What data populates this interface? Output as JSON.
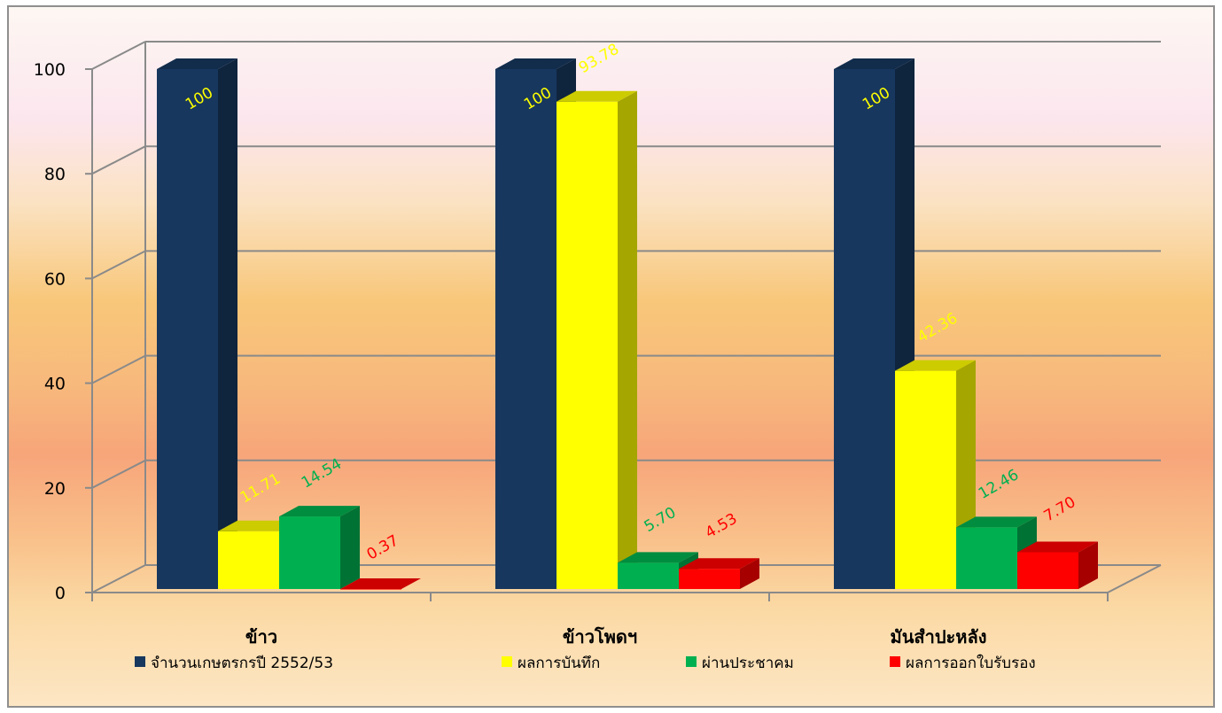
{
  "chart_data": {
    "type": "bar",
    "title": "",
    "xlabel": "",
    "ylabel": "",
    "ylim": [
      0,
      100
    ],
    "y_ticks": [
      "0",
      "20",
      "40",
      "60",
      "80",
      "100"
    ],
    "grid": true,
    "legend_position": "bottom",
    "categories": [
      "ข้าว",
      "ข้าวโพดฯ",
      "มันสำปะหลัง"
    ],
    "series": [
      {
        "name": "จำนวนเกษตรกรปี  2552/53",
        "color": "#17375e",
        "values": [
          100,
          100,
          100
        ],
        "labels": [
          "100",
          "100",
          "100"
        ],
        "label_color": "#ffff00"
      },
      {
        "name": "ผลการบันทึก",
        "color": "#ffff00",
        "values": [
          11.71,
          93.78,
          42.36
        ],
        "labels": [
          "11.71",
          "93.78",
          "42.36"
        ],
        "label_color": "#ffff00"
      },
      {
        "name": "ผ่านประชาคม",
        "color": "#00b050",
        "values": [
          14.54,
          5.7,
          12.46
        ],
        "labels": [
          "14.54",
          "5.70",
          "12.46"
        ],
        "label_color": "#00b050"
      },
      {
        "name": "ผลการออกใบรับรอง",
        "color": "#ff0000",
        "values": [
          0.37,
          4.53,
          7.7
        ],
        "labels": [
          "0.37",
          "4.53",
          "7.70"
        ],
        "label_color": "#ff0000"
      }
    ]
  }
}
